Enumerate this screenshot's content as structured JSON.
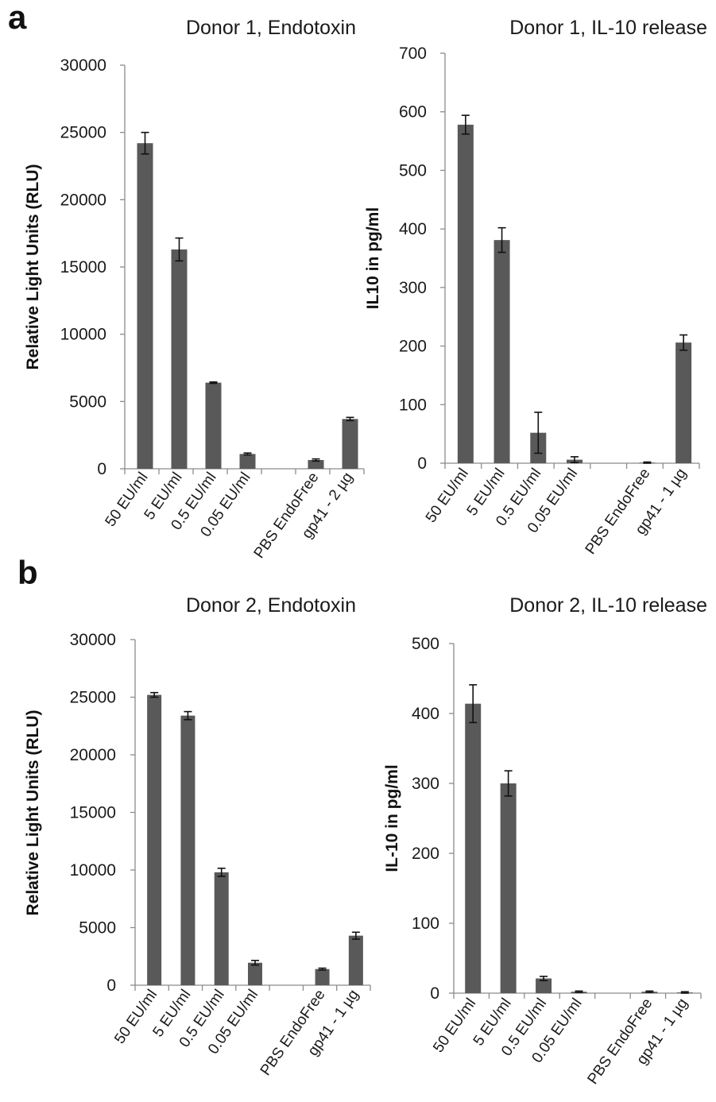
{
  "panel_labels": [
    "a",
    "b"
  ],
  "chart_data": [
    {
      "type": "bar",
      "title": "Donor 1, Endotoxin",
      "ylabel": "Relative Light Units (RLU)",
      "xlabel": "",
      "ylim": [
        0,
        30000
      ],
      "yticks": [
        0,
        5000,
        10000,
        15000,
        20000,
        25000,
        30000
      ],
      "categories": [
        "50 EU/ml",
        "5 EU/ml",
        "0.5 EU/ml",
        "0.05 EU/ml",
        "",
        "PBS EndoFree",
        "gp41 - 2 µg"
      ],
      "values": [
        24200,
        16300,
        6400,
        1100,
        null,
        650,
        3700
      ],
      "errors": [
        800,
        850,
        50,
        70,
        null,
        80,
        120
      ],
      "grid": false,
      "legend": "none"
    },
    {
      "type": "bar",
      "title": "Donor 1, IL-10 release",
      "ylabel": "IL10 in pg/ml",
      "xlabel": "",
      "ylim": [
        0,
        700
      ],
      "yticks": [
        0,
        100,
        200,
        300,
        400,
        500,
        600,
        700
      ],
      "categories": [
        "50 EU/ml",
        "5 EU/ml",
        "0.5 EU/ml",
        "0.05 EU/ml",
        "",
        "PBS EndoFree",
        "gp41 - 1 µg"
      ],
      "values": [
        578,
        381,
        52,
        6,
        null,
        1,
        206
      ],
      "errors": [
        16,
        21,
        35,
        5,
        null,
        1,
        13
      ],
      "grid": false,
      "legend": "none"
    },
    {
      "type": "bar",
      "title": "Donor 2, Endotoxin",
      "ylabel": "Relative Light Units  (RLU)",
      "xlabel": "",
      "ylim": [
        0,
        30000
      ],
      "yticks": [
        0,
        5000,
        10000,
        15000,
        20000,
        25000,
        30000
      ],
      "categories": [
        "50 EU/ml",
        "5 EU/ml",
        "0.5 EU/ml",
        "0.05 EU/ml",
        "",
        "PBS EndoFree",
        "gp41 - 1 µg"
      ],
      "values": [
        25200,
        23400,
        9800,
        1950,
        null,
        1400,
        4300
      ],
      "errors": [
        200,
        350,
        350,
        200,
        null,
        80,
        300
      ],
      "grid": false,
      "legend": "none"
    },
    {
      "type": "bar",
      "title": "Donor 2, IL-10 release",
      "ylabel": "IL-10 in pg/ml",
      "xlabel": "",
      "ylim": [
        0,
        500
      ],
      "yticks": [
        0,
        100,
        200,
        300,
        400,
        500
      ],
      "categories": [
        "50 EU/ml",
        "5 EU/ml",
        "0.5 EU/ml",
        "0.05 EU/ml",
        "",
        "PBS EndoFree",
        "gp41 - 1 µg"
      ],
      "values": [
        414,
        300,
        21,
        2,
        null,
        2,
        1
      ],
      "errors": [
        27,
        18,
        3,
        1,
        null,
        1,
        1
      ],
      "grid": false,
      "legend": "none"
    }
  ]
}
